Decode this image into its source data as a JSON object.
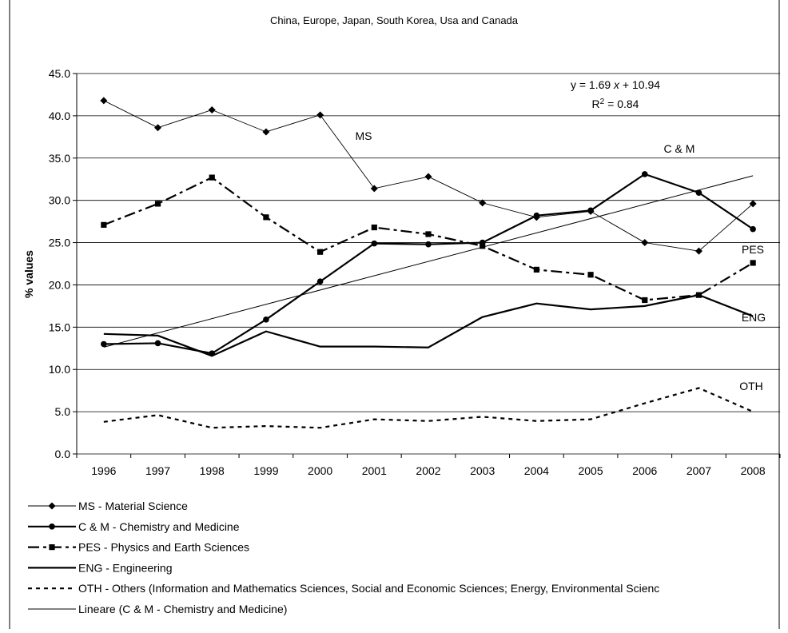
{
  "chart_data": {
    "type": "line",
    "title": "China, Europe, Japan, South Korea, Usa and Canada",
    "xlabel": "",
    "ylabel": "% values",
    "ylim": [
      0,
      45
    ],
    "yticks": [
      "0.0",
      "5.0",
      "10.0",
      "15.0",
      "20.0",
      "25.0",
      "30.0",
      "35.0",
      "40.0",
      "45.0"
    ],
    "grid": true,
    "categories": [
      "1996",
      "1997",
      "1998",
      "1999",
      "2000",
      "2001",
      "2002",
      "2003",
      "2004",
      "2005",
      "2006",
      "2007",
      "2008"
    ],
    "series": [
      {
        "key": "MS",
        "name": "MS - Material Science",
        "label": "MS",
        "style": "thin-diamond",
        "values": [
          41.8,
          38.6,
          40.7,
          38.1,
          40.1,
          31.4,
          32.8,
          29.7,
          28.0,
          28.7,
          25.0,
          24.0,
          29.6
        ]
      },
      {
        "key": "CM",
        "name": "C & M - Chemistry and Medicine",
        "label": "C & M",
        "style": "thick-circle",
        "values": [
          13.0,
          13.1,
          11.9,
          15.9,
          20.4,
          24.9,
          24.8,
          25.0,
          28.2,
          28.8,
          33.1,
          30.9,
          26.6
        ]
      },
      {
        "key": "PES",
        "name": "PES - Physics and Earth Sciences",
        "label": "PES",
        "style": "dashdot-square",
        "values": [
          27.1,
          29.6,
          32.7,
          28.0,
          23.9,
          26.8,
          26.0,
          24.6,
          21.8,
          21.2,
          18.2,
          18.8,
          22.6
        ]
      },
      {
        "key": "ENG",
        "name": "ENG - Engineering",
        "label": "ENG",
        "style": "thick-plain",
        "values": [
          14.2,
          14.0,
          11.6,
          14.5,
          12.7,
          12.7,
          12.6,
          16.2,
          17.8,
          17.1,
          17.5,
          18.8,
          16.3
        ]
      },
      {
        "key": "OTH",
        "name": "OTH - Others (Information and Mathematics Sciences, Social and Economic Sciences; Energy, Environmental Scienc",
        "label": "OTH",
        "style": "dotted",
        "values": [
          3.8,
          4.6,
          3.1,
          3.3,
          3.1,
          4.1,
          3.9,
          4.4,
          3.9,
          4.1,
          6.0,
          7.8,
          5.0
        ]
      }
    ],
    "trendline": {
      "name": "Lineare (C & M - Chemistry and Medicine)",
      "slope": 1.69,
      "intercept": 10.94,
      "equation": "y = 1.69 x + 10.94",
      "r2": "R2 = 0.84"
    }
  },
  "equation_parts": {
    "y_eq": "y = 1.69 ",
    "x_var": "x",
    "rest": " + 10.94",
    "r": "R",
    "sup": "2",
    "r_rest": " = 0.84"
  },
  "colors": {
    "line": "#000000",
    "grid": "#000000",
    "background": "#ffffff"
  }
}
